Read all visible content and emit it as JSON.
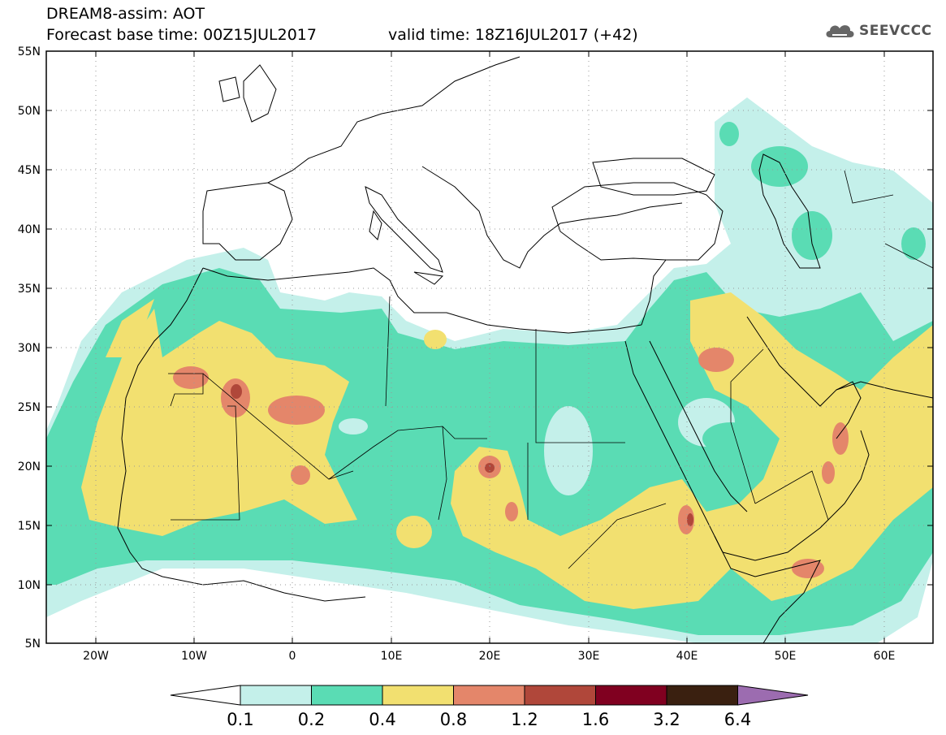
{
  "header": {
    "title": "DREAM8-assim: AOT",
    "base_time": "Forecast base time: 00Z15JUL2017",
    "valid_time": "valid time: 18Z16JUL2017 (+42)",
    "logo": "SEEVCCC"
  },
  "map": {
    "lat_labels": [
      "55N",
      "50N",
      "45N",
      "40N",
      "35N",
      "30N",
      "25N",
      "20N",
      "15N",
      "10N",
      "5N"
    ],
    "lon_labels": [
      "20W",
      "10W",
      "0",
      "10E",
      "20E",
      "30E",
      "40E",
      "50E",
      "60E"
    ]
  },
  "legend": {
    "levels": [
      "0.1",
      "0.2",
      "0.4",
      "0.8",
      "1.2",
      "1.6",
      "3.2",
      "6.4"
    ],
    "colors": [
      "#c4f0ea",
      "#5adcb4",
      "#f2e070",
      "#e4866a",
      "#b0473a",
      "#800020",
      "#3a2010",
      "#9c6cb0"
    ]
  }
}
